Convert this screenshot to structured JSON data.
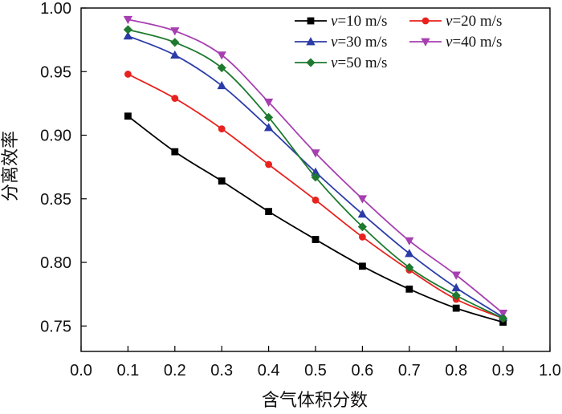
{
  "chart_data": {
    "type": "line",
    "title": "",
    "xlabel": "含气体积分数",
    "ylabel": "分离效率",
    "xlim": [
      0.0,
      1.0
    ],
    "ylim": [
      0.73,
      1.0
    ],
    "xticks": [
      "0.0",
      "0.1",
      "0.2",
      "0.3",
      "0.4",
      "0.5",
      "0.6",
      "0.7",
      "0.8",
      "0.9",
      "1.0"
    ],
    "yticks": [
      "0.75",
      "0.80",
      "0.85",
      "0.90",
      "0.95",
      "1.00"
    ],
    "x": [
      0.1,
      0.2,
      0.3,
      0.4,
      0.5,
      0.6,
      0.7,
      0.8,
      0.9
    ],
    "legend_position": "top-right",
    "series": [
      {
        "name": "v=10 m/s",
        "var": "v",
        "rest": "=10 m/s",
        "color": "#000000",
        "marker": "square",
        "values": [
          0.915,
          0.887,
          0.864,
          0.84,
          0.818,
          0.797,
          0.779,
          0.764,
          0.753
        ]
      },
      {
        "name": "v=20 m/s",
        "var": "v",
        "rest": "=20 m/s",
        "color": "#e8221f",
        "marker": "circle",
        "values": [
          0.948,
          0.929,
          0.905,
          0.877,
          0.849,
          0.82,
          0.794,
          0.771,
          0.756
        ]
      },
      {
        "name": "v=30 m/s",
        "var": "v",
        "rest": "=30 m/s",
        "color": "#2b3ca8",
        "marker": "triangle-up",
        "values": [
          0.978,
          0.963,
          0.939,
          0.906,
          0.871,
          0.838,
          0.807,
          0.78,
          0.757
        ]
      },
      {
        "name": "v=40 m/s",
        "var": "v",
        "rest": "=40 m/s",
        "color": "#a63fb0",
        "marker": "triangle-down",
        "values": [
          0.991,
          0.982,
          0.963,
          0.926,
          0.886,
          0.85,
          0.817,
          0.79,
          0.76
        ]
      },
      {
        "name": "v=50 m/s",
        "var": "v",
        "rest": "=50 m/s",
        "color": "#1e7a2e",
        "marker": "diamond",
        "values": [
          0.983,
          0.973,
          0.953,
          0.914,
          0.867,
          0.828,
          0.796,
          0.774,
          0.756
        ]
      }
    ]
  }
}
